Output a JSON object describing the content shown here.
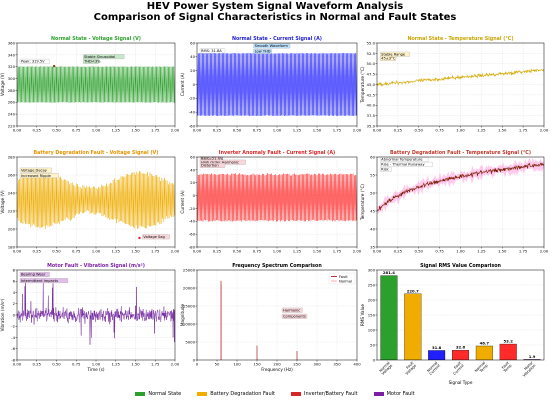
{
  "figure": {
    "title_line1": "HEV Power System Signal Waveform Analysis",
    "title_line2": "Comparison of Signal Characteristics in Normal and Fault States"
  },
  "legend": [
    {
      "label": "Normal State",
      "color": "#2ca02c"
    },
    {
      "label": "Battery Degradation Fault",
      "color": "#f0ad00"
    },
    {
      "label": "Inverter/Battery Fault",
      "color": "#d62728"
    },
    {
      "label": "Motor Fault",
      "color": "#7b1fa2"
    }
  ],
  "chart_data": [
    {
      "type": "line",
      "title": "Normal State - Voltage Signal (V)",
      "title_color": "#2ca02c",
      "xlabel": "",
      "ylabel": "Voltage (V)",
      "xlim": [
        0,
        2
      ],
      "ylim": [
        220,
        360
      ],
      "xticks": [
        "0.00",
        "0.25",
        "0.50",
        "0.75",
        "1.00",
        "1.25",
        "1.50",
        "1.75",
        "2.00"
      ],
      "yticks": [
        "220",
        "240",
        "260",
        "280",
        "300",
        "320",
        "340",
        "360"
      ],
      "series": [
        {
          "color": "#2ca02c",
          "center": [
            290,
            290
          ],
          "amplitude": [
            30,
            30
          ],
          "cycles": 120,
          "noise": 0.5
        }
      ],
      "annotations": [
        {
          "text": "Peak: 319.5V",
          "x": 0.05,
          "y": 327,
          "box": "#ffffff"
        },
        {
          "text": "Stable Sinusoidal",
          "x": 0.85,
          "y": 335,
          "box": "#c8e6c9"
        },
        {
          "text": "THD<3%",
          "x": 0.85,
          "y": 327,
          "box": "#c8e6c9"
        }
      ],
      "marker": {
        "x": 0.47,
        "y": 321,
        "color": "#8b4513"
      }
    },
    {
      "type": "line",
      "title": "Normal State - Current Signal (A)",
      "title_color": "#1f1fd1",
      "xlabel": "",
      "ylabel": "Current (A)",
      "xlim": [
        0,
        2
      ],
      "ylim": [
        -60,
        60
      ],
      "xticks": [
        "0.00",
        "0.25",
        "0.50",
        "0.75",
        "1.00",
        "1.25",
        "1.50",
        "1.75",
        "2.00"
      ],
      "yticks": [
        "-60",
        "-40",
        "-20",
        "0",
        "20",
        "40",
        "60"
      ],
      "series": [
        {
          "color": "#1f1fff",
          "center": [
            0,
            0
          ],
          "amplitude": [
            45,
            45
          ],
          "cycles": 120,
          "noise": 0.5
        }
      ],
      "annotations": [
        {
          "text": "RMS: 31.8A",
          "x": 0.05,
          "y": 47,
          "box": "#ffffff"
        },
        {
          "text": "Smooth Waveform",
          "x": 0.72,
          "y": 54,
          "box": "#bbdefb"
        },
        {
          "text": "Low THD",
          "x": 0.72,
          "y": 46,
          "box": "#bbdefb"
        }
      ]
    },
    {
      "type": "line",
      "title": "Normal State - Temperature Signal (°C)",
      "title_color": "#c9a400",
      "xlabel": "",
      "ylabel": "Temperature (°C)",
      "xlim": [
        0,
        2
      ],
      "ylim": [
        35,
        55
      ],
      "xticks": [
        "0.00",
        "0.25",
        "0.50",
        "0.75",
        "1.00",
        "1.25",
        "1.50",
        "1.75",
        "2.00"
      ],
      "yticks": [
        "35.0",
        "37.5",
        "40.0",
        "42.5",
        "45.0",
        "47.5",
        "50.0",
        "52.5",
        "55.0"
      ],
      "series": [
        {
          "color": "#d4a800",
          "kind": "trend",
          "start": 45,
          "end": 48.5,
          "noise": 0.4
        }
      ],
      "annotations": [
        {
          "text": "Stable Range",
          "x": 0.05,
          "y": 52,
          "box": "#fff3cd"
        },
        {
          "text": "45±3°C",
          "x": 0.05,
          "y": 51,
          "box": "#fff3cd"
        }
      ]
    },
    {
      "type": "line",
      "title": "Battery Degradation Fault - Voltage Signal (V)",
      "title_color": "#e69500",
      "xlabel": "",
      "ylabel": "Voltage (V)",
      "xlim": [
        0,
        2
      ],
      "ylim": [
        180,
        280
      ],
      "xticks": [
        "0.00",
        "0.25",
        "0.50",
        "0.75",
        "1.00",
        "1.25",
        "1.50",
        "1.75",
        "2.00"
      ],
      "yticks": [
        "180",
        "200",
        "220",
        "240",
        "260",
        "280"
      ],
      "series": [
        {
          "color": "#f0ad00",
          "center": [
            232,
            232
          ],
          "amplitude": [
            22,
            22
          ],
          "cycles": 120,
          "noise": 3,
          "wobble": 8
        }
      ],
      "annotations": [
        {
          "text": "Voltage Decay",
          "x": 0.05,
          "y": 264,
          "box": "#fff3cd"
        },
        {
          "text": "Increased Ripple",
          "x": 0.05,
          "y": 258,
          "box": "#fff3cd"
        },
        {
          "text": "Voltage Sag",
          "x": 1.6,
          "y": 190,
          "box": "#f8d7da"
        }
      ],
      "marker": {
        "x": 1.55,
        "y": 190,
        "color": "#d62728"
      }
    },
    {
      "type": "line",
      "title": "Inverter Anomaly Fault - Current Signal (A)",
      "title_color": "#d62728",
      "xlabel": "",
      "ylabel": "Current (A)",
      "xlim": [
        0,
        2
      ],
      "ylim": [
        -80,
        60
      ],
      "xticks": [
        "0.00",
        "0.25",
        "0.50",
        "0.75",
        "1.00",
        "1.25",
        "1.50",
        "1.75",
        "2.00"
      ],
      "yticks": [
        "-80",
        "-60",
        "-40",
        "-20",
        "0",
        "20",
        "40",
        "60"
      ],
      "series": [
        {
          "color": "#ff2a2a",
          "center": [
            -3,
            -3
          ],
          "amplitude": [
            36,
            36
          ],
          "cycles": 120,
          "noise": 1.5
        }
      ],
      "annotations": [
        {
          "text": "RMS=21.5%",
          "x": 0.05,
          "y": 55,
          "box": "#f8d7da"
        },
        {
          "text": "High Order Harmonic",
          "x": 0.05,
          "y": 50,
          "box": "#f8d7da"
        },
        {
          "text": "Distortion",
          "x": 0.05,
          "y": 45,
          "box": "#f8d7da"
        }
      ]
    },
    {
      "type": "line",
      "title": "Battery Degradation Fault - Temperature Signal (°C)",
      "title_color": "#c0392b",
      "xlabel": "",
      "ylabel": "Temperature (°C)",
      "xlim": [
        0,
        2
      ],
      "ylim": [
        35,
        60
      ],
      "xticks": [
        "0.00",
        "0.25",
        "0.50",
        "0.75",
        "1.00",
        "1.25",
        "1.50",
        "1.75",
        "2.00"
      ],
      "yticks": [
        "35",
        "40",
        "45",
        "50",
        "55",
        "60"
      ],
      "series": [
        {
          "color": "#7a1a00",
          "kind": "log",
          "start": 45,
          "end": 58,
          "noise": 0.6,
          "halo": "#ff66cc"
        }
      ],
      "annotations": [
        {
          "text": "Abnormal Temperature",
          "x": 0.05,
          "y": 59,
          "box": "#ffffff"
        },
        {
          "text": "Rise - Thermal Runaway",
          "x": 0.05,
          "y": 57.6,
          "box": "#ffffff"
        },
        {
          "text": "Risk",
          "x": 0.05,
          "y": 56.2,
          "box": "#ffffff"
        }
      ]
    },
    {
      "type": "line",
      "title": "Motor Fault - Vibration Signal (m/s²)",
      "title_color": "#7b1fa2",
      "xlabel": "Time (s)",
      "ylabel": "Vibration (m/s²)",
      "xlim": [
        0,
        2
      ],
      "ylim": [
        -8,
        8
      ],
      "xticks": [
        "0.00",
        "0.25",
        "0.50",
        "0.75",
        "1.00",
        "1.25",
        "1.50",
        "1.75",
        "2.00"
      ],
      "yticks": [
        "-8",
        "-6",
        "-4",
        "-2",
        "0",
        "2",
        "4",
        "6",
        "8"
      ],
      "series": [
        {
          "color": "#6a1b9a",
          "kind": "vibration",
          "center": 0,
          "noise": 1.2
        }
      ],
      "annotations": [
        {
          "text": "Bearing Wear",
          "x": 0.05,
          "y": 7,
          "box": "#e1bee7"
        },
        {
          "text": "Intermittent Impacts",
          "x": 0.05,
          "y": 5.9,
          "box": "#e1bee7"
        }
      ]
    },
    {
      "type": "line",
      "title": "Frequency Spectrum Comparison",
      "title_color": "#000000",
      "xlabel": "Frequency (Hz)",
      "ylabel": "Magnitude",
      "xlim": [
        0,
        400
      ],
      "ylim": [
        0,
        25000
      ],
      "xticks": [
        "0",
        "50",
        "100",
        "150",
        "200",
        "250",
        "300",
        "350",
        "400"
      ],
      "yticks": [
        "0",
        "5000",
        "10000",
        "15000",
        "20000",
        "25000"
      ],
      "legend_entries": [
        {
          "label": "Fault",
          "color": "#a00000"
        },
        {
          "label": "Normal",
          "color": "#ff9999"
        }
      ],
      "series": [
        {
          "name": "Fault",
          "color": "#a00000",
          "kind": "spikes",
          "peaks": [
            [
              60,
              22000
            ],
            [
              150,
              4000
            ],
            [
              250,
              2500
            ]
          ]
        },
        {
          "name": "Normal",
          "color": "#ff9999",
          "kind": "spikes",
          "peaks": [
            [
              60,
              21000
            ],
            [
              150,
              500
            ],
            [
              250,
              400
            ]
          ]
        }
      ],
      "annotations": [
        {
          "text": "Harmonic",
          "x": 215,
          "y": 13500,
          "box": "#f8d7da"
        },
        {
          "text": "Components",
          "x": 215,
          "y": 11800,
          "box": "#f8d7da"
        }
      ]
    },
    {
      "type": "bar",
      "title": "Signal RMS Value Comparison",
      "title_color": "#000000",
      "xlabel": "Signal Type",
      "ylabel": "RMS Value",
      "ylim": [
        0,
        300
      ],
      "yticks": [
        "0",
        "50",
        "100",
        "150",
        "200",
        "250",
        "300"
      ],
      "categories": [
        "Normal Voltage",
        "Fault Voltage",
        "Normal Current",
        "Fault Current",
        "Normal Temp",
        "Fault Temp",
        "Motor Vibration"
      ],
      "values": [
        281.4,
        220.7,
        31.8,
        32.6,
        46.7,
        53.2,
        1.9
      ],
      "colors": [
        "#2ca02c",
        "#f0ad00",
        "#1f1fff",
        "#ff2a2a",
        "#f0ad00",
        "#ff2a2a",
        "#7b1fa2"
      ]
    }
  ]
}
